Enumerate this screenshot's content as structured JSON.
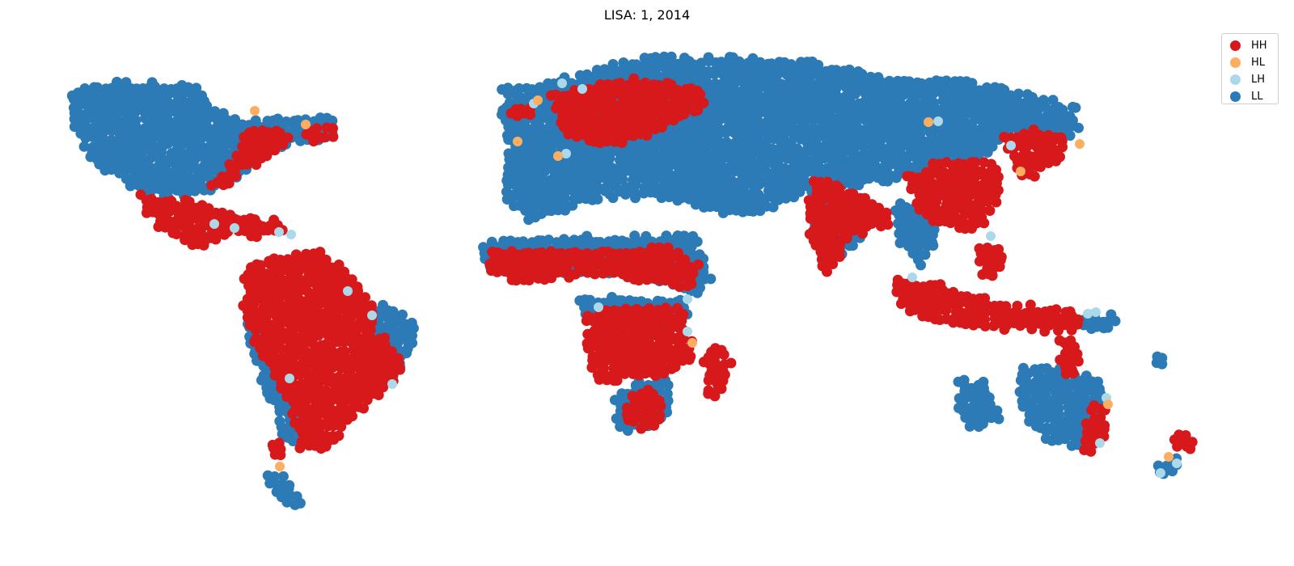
{
  "title": "LISA: 1, 2014",
  "legend": {
    "position": "upper-right",
    "items": [
      {
        "label": "HH",
        "color": "#d7191c"
      },
      {
        "label": "HL",
        "color": "#fdae61"
      },
      {
        "label": "LH",
        "color": "#abd9e9"
      },
      {
        "label": "LL",
        "color": "#2c7bb6"
      }
    ]
  },
  "map": {
    "type": "scatter-map",
    "classes": [
      "HH",
      "HL",
      "LH",
      "LL"
    ],
    "axes_visible": false
  }
}
